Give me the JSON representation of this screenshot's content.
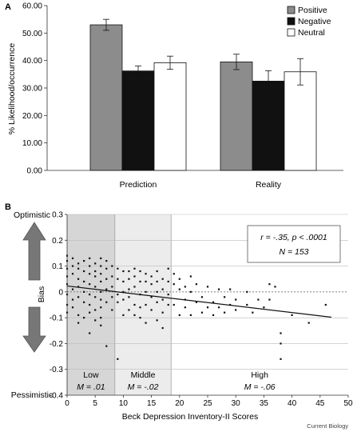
{
  "figure_source": "Current Biology",
  "chart_data": [
    {
      "panel_label": "A",
      "type": "bar",
      "categories": [
        "Prediction",
        "Reality"
      ],
      "series": [
        {
          "name": "Positive",
          "values": [
            53.0,
            39.5
          ],
          "errors": [
            2.0,
            2.8
          ],
          "color": "#8c8c8c"
        },
        {
          "name": "Negative",
          "values": [
            36.2,
            32.5
          ],
          "errors": [
            1.8,
            3.8
          ],
          "color": "#111111"
        },
        {
          "name": "Neutral",
          "values": [
            39.2,
            35.9
          ],
          "errors": [
            2.4,
            4.8
          ],
          "color": "#ffffff"
        }
      ],
      "ylabel": "% Likelihood/occurrence",
      "xlabel": "",
      "ylim": [
        0,
        60
      ],
      "yticks": [
        "0.00",
        "10.00",
        "20.00",
        "30.00",
        "40.00",
        "50.00",
        "60.00"
      ],
      "grid": false,
      "legend": "top-right"
    },
    {
      "panel_label": "B",
      "type": "scatter",
      "xlabel": "Beck Depression Inventory-II Scores",
      "ylabel": "Bias",
      "xlim": [
        0,
        50
      ],
      "ylim": [
        -0.4,
        0.3
      ],
      "xticks": [
        "0",
        "5",
        "10",
        "15",
        "20",
        "25",
        "30",
        "35",
        "40",
        "45",
        "50"
      ],
      "yticks": [
        "0.3",
        "0.2",
        "0.1",
        "0",
        "-0.1",
        "-0.2",
        "-0.3",
        "-0.4"
      ],
      "grid": true,
      "top_label": "Optimistic",
      "bottom_label": "Pessimistic",
      "stats": {
        "r_text": "r = -.35, p < .0001",
        "n_text": "N = 153"
      },
      "regions": [
        {
          "from": 0,
          "to": 8.5,
          "label": "Low",
          "mean_text": "M = .01",
          "color": "#d6d6d6"
        },
        {
          "from": 8.5,
          "to": 18.5,
          "label": "Middle",
          "mean_text": "M = -.02",
          "color": "#ececec"
        },
        {
          "from": 18.5,
          "to": 50,
          "label": "High",
          "mean_text": "M = -.06",
          "color": "#ffffff"
        }
      ],
      "trendline": {
        "x": [
          0,
          47
        ],
        "y": [
          0.023,
          -0.098
        ]
      },
      "points": [
        [
          0,
          0.14
        ],
        [
          0,
          0.12
        ],
        [
          0,
          0.09
        ],
        [
          0,
          0.06
        ],
        [
          0,
          0.03
        ],
        [
          0,
          -0.01
        ],
        [
          0,
          -0.05
        ],
        [
          0,
          -0.08
        ],
        [
          1,
          0.13
        ],
        [
          1,
          0.1
        ],
        [
          1,
          0.07
        ],
        [
          1,
          0.01
        ],
        [
          1,
          -0.03
        ],
        [
          1,
          -0.06
        ],
        [
          2,
          0.11
        ],
        [
          2,
          0.09
        ],
        [
          2,
          0.05
        ],
        [
          2,
          0.02
        ],
        [
          2,
          -0.02
        ],
        [
          2,
          -0.09
        ],
        [
          2,
          -0.12
        ],
        [
          3,
          0.12
        ],
        [
          3,
          0.08
        ],
        [
          3,
          0.04
        ],
        [
          3,
          0.0
        ],
        [
          3,
          -0.04
        ],
        [
          3,
          -0.1
        ],
        [
          4,
          0.13
        ],
        [
          4,
          0.1
        ],
        [
          4,
          0.07
        ],
        [
          4,
          0.03
        ],
        [
          4,
          -0.01
        ],
        [
          4,
          -0.05
        ],
        [
          4,
          -0.08
        ],
        [
          4,
          -0.16
        ],
        [
          5,
          0.11
        ],
        [
          5,
          0.08
        ],
        [
          5,
          0.06
        ],
        [
          5,
          0.02
        ],
        [
          5,
          -0.02
        ],
        [
          5,
          -0.07
        ],
        [
          5,
          -0.11
        ],
        [
          6,
          0.13
        ],
        [
          6,
          0.1
        ],
        [
          6,
          0.07
        ],
        [
          6,
          0.04
        ],
        [
          6,
          0.0
        ],
        [
          6,
          -0.03
        ],
        [
          6,
          -0.06
        ],
        [
          6,
          -0.1
        ],
        [
          6,
          -0.13
        ],
        [
          7,
          0.12
        ],
        [
          7,
          0.09
        ],
        [
          7,
          0.05
        ],
        [
          7,
          0.01
        ],
        [
          7,
          -0.04
        ],
        [
          7,
          -0.21
        ],
        [
          8,
          0.1
        ],
        [
          8,
          0.06
        ],
        [
          8,
          0.02
        ],
        [
          8,
          -0.02
        ],
        [
          8,
          -0.07
        ],
        [
          9,
          0.09
        ],
        [
          9,
          0.05
        ],
        [
          9,
          -0.01
        ],
        [
          9,
          -0.04
        ],
        [
          9,
          -0.26
        ],
        [
          10,
          0.08
        ],
        [
          10,
          0.04
        ],
        [
          10,
          0.0
        ],
        [
          10,
          -0.03
        ],
        [
          10,
          -0.09
        ],
        [
          11,
          0.08
        ],
        [
          11,
          0.05
        ],
        [
          11,
          0.01
        ],
        [
          11,
          -0.02
        ],
        [
          11,
          -0.07
        ],
        [
          12,
          0.09
        ],
        [
          12,
          0.06
        ],
        [
          12,
          0.02
        ],
        [
          12,
          -0.05
        ],
        [
          12,
          -0.09
        ],
        [
          13,
          0.08
        ],
        [
          13,
          0.04
        ],
        [
          13,
          -0.01
        ],
        [
          13,
          -0.06
        ],
        [
          13,
          -0.1
        ],
        [
          14,
          0.07
        ],
        [
          14,
          0.04
        ],
        [
          14,
          0.0
        ],
        [
          14,
          -0.05
        ],
        [
          14,
          -0.12
        ],
        [
          15,
          0.06
        ],
        [
          15,
          0.03
        ],
        [
          15,
          -0.02
        ],
        [
          15,
          -0.07
        ],
        [
          16,
          0.08
        ],
        [
          16,
          0.04
        ],
        [
          16,
          0.0
        ],
        [
          16,
          -0.04
        ],
        [
          16,
          -0.11
        ],
        [
          17,
          0.05
        ],
        [
          17,
          0.01
        ],
        [
          17,
          -0.03
        ],
        [
          17,
          -0.08
        ],
        [
          17,
          -0.14
        ],
        [
          18,
          0.09
        ],
        [
          18,
          0.04
        ],
        [
          18,
          -0.01
        ],
        [
          18,
          -0.05
        ],
        [
          19,
          0.07
        ],
        [
          19,
          0.03
        ],
        [
          19,
          -0.05
        ],
        [
          20,
          0.05
        ],
        [
          20,
          0.01
        ],
        [
          20,
          -0.09
        ],
        [
          21,
          0.02
        ],
        [
          21,
          -0.03
        ],
        [
          21,
          -0.06
        ],
        [
          22,
          0.06
        ],
        [
          22,
          0.0
        ],
        [
          22,
          -0.09
        ],
        [
          23,
          0.03
        ],
        [
          23,
          -0.04
        ],
        [
          24,
          -0.02
        ],
        [
          24,
          -0.08
        ],
        [
          25,
          0.02
        ],
        [
          25,
          -0.06
        ],
        [
          26,
          -0.04
        ],
        [
          26,
          -0.09
        ],
        [
          27,
          0.01
        ],
        [
          27,
          -0.06
        ],
        [
          28,
          -0.02
        ],
        [
          28,
          -0.08
        ],
        [
          29,
          0.01
        ],
        [
          29,
          -0.05
        ],
        [
          30,
          -0.03
        ],
        [
          30,
          -0.07
        ],
        [
          32,
          0.0
        ],
        [
          32,
          -0.05
        ],
        [
          33,
          -0.08
        ],
        [
          34,
          -0.03
        ],
        [
          35,
          -0.06
        ],
        [
          36,
          0.03
        ],
        [
          36,
          -0.03
        ],
        [
          37,
          0.02
        ],
        [
          38,
          -0.16
        ],
        [
          38,
          -0.2
        ],
        [
          38,
          -0.26
        ],
        [
          40,
          -0.09
        ],
        [
          43,
          -0.12
        ],
        [
          46,
          -0.05
        ]
      ]
    }
  ]
}
